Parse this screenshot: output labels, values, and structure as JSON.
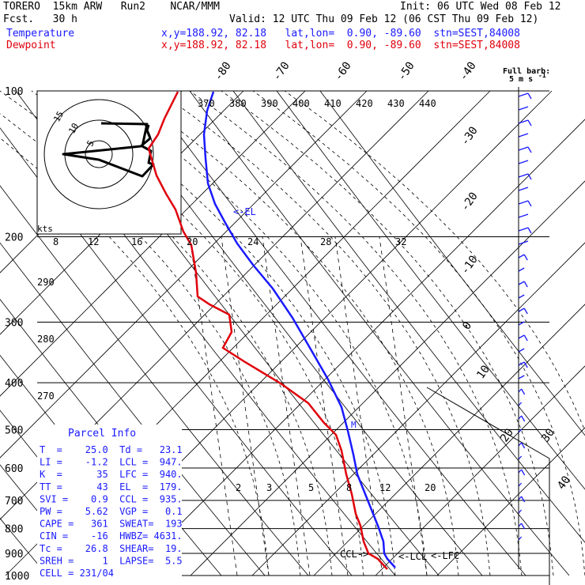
{
  "header": {
    "model": "TORERO  15km ARW   Run2    NCAR/MMM",
    "init": "Init: 06 UTC Wed 08 Feb 12",
    "fcst": "Fcst.   30 h",
    "valid": "Valid: 12 UTC Thu 09 Feb 12 (06 CST Thu 09 Feb 12)",
    "temp_label": "Temperature",
    "dew_label": "Dewpoint",
    "loc_line": "x,y=188.92, 82.18   lat,lon=  0.90, -89.60  stn=SEST,84008"
  },
  "barb_label": {
    "line1": "Full barb:",
    "line2": "5 m s",
    "sup": "-1"
  },
  "parcel": {
    "title": "Parcel Info",
    "rows": [
      "T  =    25.0  Td =   23.1",
      "LI =    -1.2  LCL =  947.",
      "K  =      35  LFC =  940.",
      "TT =      43  EL  =  179.",
      "SVI =    0.9  CCL =  935.",
      "PW =    5.62  VGP =   0.1",
      "CAPE =   361  SWEAT=  193",
      "CIN =    -16  HWBZ= 4631.",
      "Tc =    26.8  SHEAR=  19.",
      "SREH =     1  LAPSE=  5.5",
      "CELL = 231/04"
    ]
  },
  "annotations": {
    "el": "<-EL",
    "ccl": "CCL->",
    "lcl": "<-LCL",
    "lfc": "<-LFC",
    "m": "M"
  },
  "hodograph": {
    "units": "kts",
    "ring_labels": [
      "5",
      "10",
      "15"
    ]
  },
  "chart_data": {
    "type": "skew-t",
    "pressure_levels": [
      1000,
      900,
      800,
      700,
      600,
      500,
      400,
      300,
      200,
      100
    ],
    "isotherm_labels": [
      "-80",
      "-70",
      "-60",
      "-50",
      "-40",
      "-30",
      "-20",
      "-10",
      "0",
      "10",
      "20",
      "30",
      "40"
    ],
    "theta_labels": [
      "270",
      "280",
      "290"
    ],
    "theta_e_labels": [
      "370",
      "380",
      "390",
      "400",
      "410",
      "420",
      "430",
      "440"
    ],
    "mixing_labels_upper": [
      "8",
      "12",
      "16",
      "20",
      "24",
      "28",
      "32"
    ],
    "mixing_labels_lower": [
      "2",
      "3",
      "5",
      "8",
      "12",
      "20"
    ],
    "series": [
      {
        "name": "Temperature",
        "color": "#1a1aff"
      },
      {
        "name": "Dewpoint",
        "color": "#e0000c"
      }
    ]
  }
}
